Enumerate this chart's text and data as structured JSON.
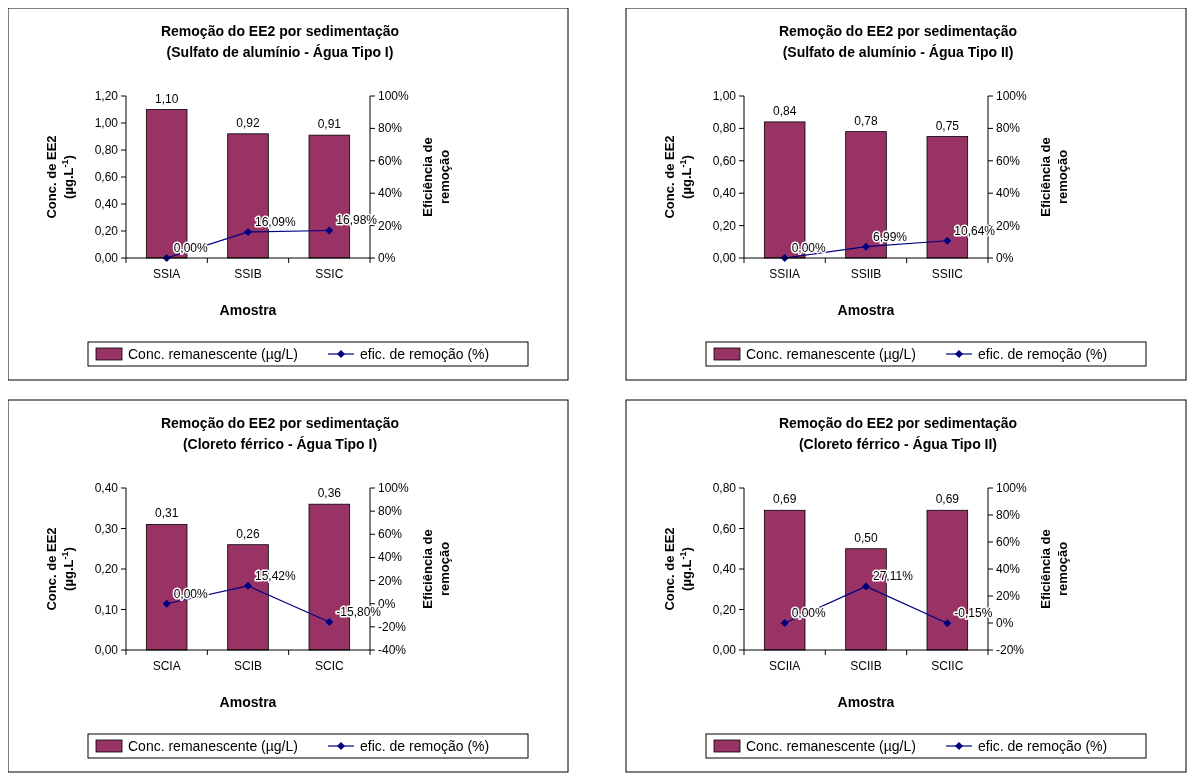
{
  "chart_data": [
    {
      "type": "bar",
      "title": "Remoção do EE2 por sedimentação\n(Sulfato de alumínio - Água Tipo I)",
      "xlabel": "Amostra",
      "ylabel": "Conc. de EE2\n(µg.L$^{-1}$)",
      "y2label": "Eficiência de\nremoção",
      "categories": [
        "SSIA",
        "SSIB",
        "SSIC"
      ],
      "ylim": [
        0,
        1.2
      ],
      "yticks": [
        {
          "value": 0,
          "label": "0,00"
        },
        {
          "value": 0.2,
          "label": "0,20"
        },
        {
          "value": 0.4,
          "label": "0,40"
        },
        {
          "value": 0.6,
          "label": "0,60"
        },
        {
          "value": 0.8,
          "label": "0,80"
        },
        {
          "value": 1,
          "label": "1,00"
        },
        {
          "value": 1.2,
          "label": "1,20"
        }
      ],
      "y2lim": [
        0,
        100
      ],
      "y2ticks": [
        {
          "value": 0,
          "label": "0%"
        },
        {
          "value": 20,
          "label": "20%"
        },
        {
          "value": 40,
          "label": "40%"
        },
        {
          "value": 60,
          "label": "60%"
        },
        {
          "value": 80,
          "label": "80%"
        },
        {
          "value": 100,
          "label": "100%"
        }
      ],
      "legend": "bottom",
      "grid": false,
      "series": [
        {
          "name": "Conc. remanescente (µg/L)",
          "color": "#993366",
          "values": [
            1.1,
            0.92,
            0.91
          ],
          "value_labels": [
            "1,10",
            "0,92",
            "0,91"
          ]
        },
        {
          "name": "efic. de remoção (%)",
          "type": "line",
          "axis": "y2",
          "color": "#000080",
          "marker": "diamond",
          "values": [
            0,
            16.09,
            16.98
          ],
          "value_labels": [
            "0,00%",
            "16,09%",
            "16,98%"
          ]
        }
      ]
    },
    {
      "type": "bar",
      "title": "Remoção do EE2 por sedimentação\n(Sulfato de alumínio - Água Tipo II)",
      "xlabel": "Amostra",
      "ylabel": "Conc. de EE2\n(µg.L$^{-1}$)",
      "y2label": "Eficiência de\nremoção",
      "categories": [
        "SSIIA",
        "SSIIB",
        "SSIIC"
      ],
      "ylim": [
        0,
        1
      ],
      "yticks": [
        {
          "value": 0,
          "label": "0,00"
        },
        {
          "value": 0.2,
          "label": "0,20"
        },
        {
          "value": 0.4,
          "label": "0,40"
        },
        {
          "value": 0.6,
          "label": "0,60"
        },
        {
          "value": 0.8,
          "label": "0,80"
        },
        {
          "value": 1,
          "label": "1,00"
        }
      ],
      "y2lim": [
        0,
        100
      ],
      "y2ticks": [
        {
          "value": 0,
          "label": "0%"
        },
        {
          "value": 20,
          "label": "20%"
        },
        {
          "value": 40,
          "label": "40%"
        },
        {
          "value": 60,
          "label": "60%"
        },
        {
          "value": 80,
          "label": "80%"
        },
        {
          "value": 100,
          "label": "100%"
        }
      ],
      "legend": "bottom",
      "grid": false,
      "series": [
        {
          "name": "Conc. remanescente (µg/L)",
          "color": "#993366",
          "values": [
            0.84,
            0.78,
            0.75
          ],
          "value_labels": [
            "0,84",
            "0,78",
            "0,75"
          ]
        },
        {
          "name": "efic. de remoção (%)",
          "type": "line",
          "axis": "y2",
          "color": "#000080",
          "marker": "diamond",
          "values": [
            0,
            6.99,
            10.64
          ],
          "value_labels": [
            "0,00%",
            "6,99%",
            "10,64%"
          ]
        }
      ]
    },
    {
      "type": "bar",
      "title": "Remoção do EE2 por sedimentação\n(Cloreto férrico - Água Tipo I)",
      "xlabel": "Amostra",
      "ylabel": "Conc. de EE2\n(µg.L$^{-1}$)",
      "y2label": "Eficiência de\nremoção",
      "categories": [
        "SCIA",
        "SCIB",
        "SCIC"
      ],
      "ylim": [
        0,
        0.4
      ],
      "yticks": [
        {
          "value": 0,
          "label": "0,00"
        },
        {
          "value": 0.1,
          "label": "0,10"
        },
        {
          "value": 0.2,
          "label": "0,20"
        },
        {
          "value": 0.3,
          "label": "0,30"
        },
        {
          "value": 0.4,
          "label": "0,40"
        }
      ],
      "y2lim": [
        -40,
        100
      ],
      "y2ticks": [
        {
          "value": -40,
          "label": "-40%"
        },
        {
          "value": -20,
          "label": "-20%"
        },
        {
          "value": 0,
          "label": "0%"
        },
        {
          "value": 20,
          "label": "20%"
        },
        {
          "value": 40,
          "label": "40%"
        },
        {
          "value": 60,
          "label": "60%"
        },
        {
          "value": 80,
          "label": "80%"
        },
        {
          "value": 100,
          "label": "100%"
        }
      ],
      "legend": "bottom",
      "grid": false,
      "series": [
        {
          "name": "Conc. remanescente (µg/L)",
          "color": "#993366",
          "values": [
            0.31,
            0.26,
            0.36
          ],
          "value_labels": [
            "0,31",
            "0,26",
            "0,36"
          ]
        },
        {
          "name": "efic. de remoção (%)",
          "type": "line",
          "axis": "y2",
          "color": "#000080",
          "marker": "diamond",
          "values": [
            0,
            15.42,
            -15.8
          ],
          "value_labels": [
            "0,00%",
            "15,42%",
            "-15,80%"
          ]
        }
      ]
    },
    {
      "type": "bar",
      "title": "Remoção do EE2 por sedimentação\n(Cloreto férrico - Água Tipo II)",
      "xlabel": "Amostra",
      "ylabel": "Conc. de EE2\n(µg.L$^{-1}$)",
      "y2label": "Eficiência de\nremoção",
      "categories": [
        "SCIIA",
        "SCIIB",
        "SCIIC"
      ],
      "ylim": [
        0,
        0.8
      ],
      "yticks": [
        {
          "value": 0,
          "label": "0,00"
        },
        {
          "value": 0.2,
          "label": "0,20"
        },
        {
          "value": 0.4,
          "label": "0,40"
        },
        {
          "value": 0.6,
          "label": "0,60"
        },
        {
          "value": 0.8,
          "label": "0,80"
        }
      ],
      "y2lim": [
        -20,
        100
      ],
      "y2ticks": [
        {
          "value": -20,
          "label": "-20%"
        },
        {
          "value": 0,
          "label": "0%"
        },
        {
          "value": 20,
          "label": "20%"
        },
        {
          "value": 40,
          "label": "40%"
        },
        {
          "value": 60,
          "label": "60%"
        },
        {
          "value": 80,
          "label": "80%"
        },
        {
          "value": 100,
          "label": "100%"
        }
      ],
      "legend": "bottom",
      "grid": false,
      "series": [
        {
          "name": "Conc. remanescente (µg/L)",
          "color": "#993366",
          "values": [
            0.69,
            0.5,
            0.69
          ],
          "value_labels": [
            "0,69",
            "0,50",
            "0,69"
          ]
        },
        {
          "name": "efic. de remoção (%)",
          "type": "line",
          "axis": "y2",
          "color": "#000080",
          "marker": "diamond",
          "values": [
            0,
            27.11,
            -0.15
          ],
          "value_labels": [
            "0,00%",
            "27,11%",
            "-0,15%"
          ]
        }
      ]
    }
  ]
}
